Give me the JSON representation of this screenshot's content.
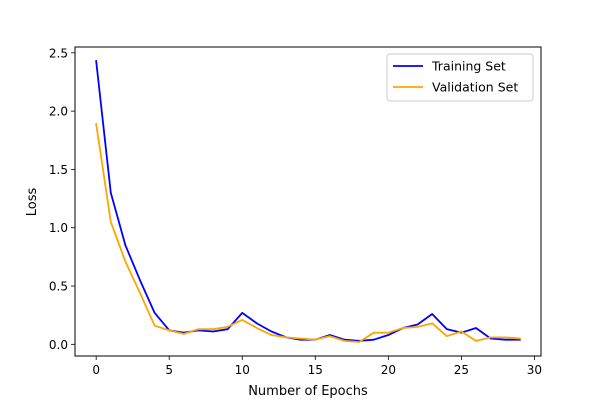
{
  "chart_data": {
    "type": "line",
    "xlabel": "Number of Epochs",
    "ylabel": "Loss",
    "xlim": [
      -1.45,
      30.45
    ],
    "ylim": [
      -0.1,
      2.55
    ],
    "xticks": [
      0,
      5,
      10,
      15,
      20,
      25,
      30
    ],
    "yticks": [
      0.0,
      0.5,
      1.0,
      1.5,
      2.0,
      2.5
    ],
    "grid": false,
    "legend_position": "top-right",
    "x": [
      0,
      1,
      2,
      3,
      4,
      5,
      6,
      7,
      8,
      9,
      10,
      11,
      12,
      13,
      14,
      15,
      16,
      17,
      18,
      19,
      20,
      21,
      22,
      23,
      24,
      25,
      26,
      27,
      28,
      29
    ],
    "series": [
      {
        "name": "Training Set",
        "color": "#0000ff",
        "values": [
          2.43,
          1.3,
          0.85,
          0.55,
          0.27,
          0.12,
          0.1,
          0.12,
          0.11,
          0.13,
          0.27,
          0.18,
          0.11,
          0.06,
          0.04,
          0.04,
          0.08,
          0.04,
          0.03,
          0.04,
          0.08,
          0.14,
          0.17,
          0.26,
          0.13,
          0.1,
          0.14,
          0.05,
          0.04,
          0.04
        ]
      },
      {
        "name": "Validation Set",
        "color": "#ffa500",
        "values": [
          1.89,
          1.05,
          0.71,
          0.44,
          0.16,
          0.12,
          0.09,
          0.13,
          0.13,
          0.15,
          0.21,
          0.14,
          0.08,
          0.06,
          0.05,
          0.04,
          0.07,
          0.03,
          0.02,
          0.1,
          0.1,
          0.14,
          0.15,
          0.18,
          0.07,
          0.11,
          0.03,
          0.06,
          0.06,
          0.05
        ]
      }
    ]
  }
}
